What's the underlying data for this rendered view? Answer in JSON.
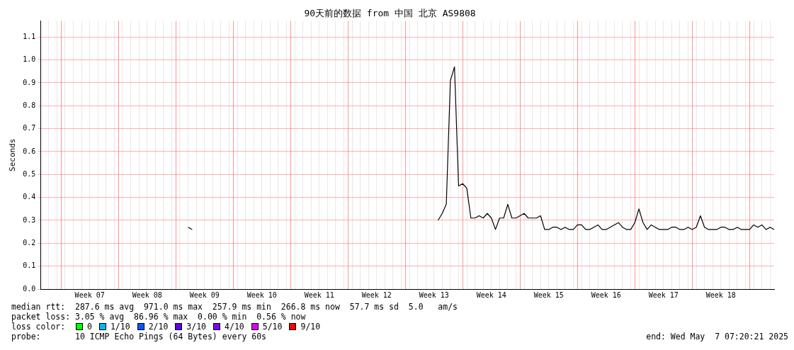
{
  "chart_data": {
    "type": "line",
    "title": "90天前的数据 from 中国 北京 AS9808",
    "ylabel": "Seconds",
    "categories": [
      null,
      null,
      null,
      null,
      null,
      null,
      null,
      null,
      null,
      null,
      null,
      null,
      "Week 07",
      null,
      null,
      null,
      null,
      null,
      null,
      null,
      null,
      null,
      null,
      null,
      null,
      null,
      "Week 08",
      null,
      null,
      null,
      null,
      null,
      null,
      null,
      null,
      null,
      null,
      null,
      null,
      null,
      "Week 09",
      null,
      null,
      null,
      null,
      null,
      null,
      null,
      null,
      null,
      null,
      null,
      null,
      null,
      "Week 10",
      null,
      null,
      null,
      null,
      null,
      null,
      null,
      null,
      null,
      null,
      null,
      null,
      null,
      "Week 11",
      null,
      null,
      null,
      null,
      null,
      null,
      null,
      null,
      null,
      null,
      null,
      null,
      null,
      "Week 12",
      null,
      null,
      null,
      null,
      null,
      null,
      null,
      null,
      null,
      null,
      null,
      null,
      null,
      "Week 13",
      null,
      null,
      null,
      null,
      null,
      null,
      null,
      null,
      null,
      null,
      null,
      null,
      null,
      "Week 14",
      null,
      null,
      null,
      null,
      null,
      null,
      null,
      null,
      null,
      null,
      null,
      null,
      null,
      "Week 15",
      null,
      null,
      null,
      null,
      null,
      null,
      null,
      null,
      null,
      null,
      null,
      null,
      null,
      "Week 16",
      null,
      null,
      null,
      null,
      null,
      null,
      null,
      null,
      null,
      null,
      null,
      null,
      null,
      "Week 17",
      null,
      null,
      null,
      null,
      null,
      null,
      null,
      null,
      null,
      null,
      null,
      null,
      null,
      "Week 18",
      null,
      null,
      null,
      null,
      null,
      null,
      null,
      null,
      null,
      null,
      null,
      null,
      null
    ],
    "series": [
      {
        "color": "#000000",
        "values": [
          null,
          null,
          null,
          null,
          null,
          null,
          null,
          null,
          null,
          null,
          null,
          null,
          null,
          null,
          null,
          null,
          null,
          null,
          null,
          null,
          null,
          null,
          null,
          null,
          null,
          null,
          null,
          null,
          null,
          null,
          null,
          null,
          null,
          null,
          null,
          null,
          0.27,
          0.26,
          null,
          null,
          null,
          null,
          null,
          null,
          null,
          null,
          null,
          null,
          null,
          null,
          null,
          null,
          null,
          null,
          null,
          null,
          null,
          null,
          null,
          null,
          null,
          null,
          null,
          null,
          null,
          null,
          null,
          null,
          null,
          null,
          null,
          null,
          null,
          null,
          null,
          null,
          null,
          null,
          null,
          null,
          null,
          null,
          null,
          null,
          null,
          null,
          null,
          null,
          null,
          null,
          null,
          null,
          null,
          null,
          null,
          null,
          null,
          0.3,
          0.33,
          0.37,
          0.91,
          0.97,
          0.45,
          0.46,
          0.44,
          0.31,
          0.31,
          0.32,
          0.31,
          0.33,
          0.31,
          0.26,
          0.31,
          0.31,
          0.37,
          0.31,
          0.31,
          0.32,
          0.33,
          0.31,
          0.31,
          0.31,
          0.32,
          0.26,
          0.26,
          0.27,
          0.27,
          0.26,
          0.27,
          0.26,
          0.26,
          0.28,
          0.28,
          0.26,
          0.26,
          0.27,
          0.28,
          0.26,
          0.26,
          0.27,
          0.28,
          0.29,
          0.27,
          0.26,
          0.26,
          0.29,
          0.35,
          0.29,
          0.26,
          0.28,
          0.27,
          0.26,
          0.26,
          0.26,
          0.27,
          0.27,
          0.26,
          0.26,
          0.27,
          0.26,
          0.27,
          0.32,
          0.27,
          0.26,
          0.26,
          0.26,
          0.27,
          0.27,
          0.26,
          0.26,
          0.27,
          0.26,
          0.26,
          0.26,
          0.28,
          0.27,
          0.28,
          0.26,
          0.27,
          0.26
        ]
      }
    ],
    "ylim": [
      0,
      1.17
    ],
    "yticks": [
      {
        "value": 0,
        "label": "0.0"
      },
      0.1,
      0.2,
      0.3,
      0.4,
      0.5,
      0.6,
      0.7,
      0.8,
      0.9,
      {
        "value": 1,
        "label": "1.0"
      },
      1.1
    ],
    "grid": true,
    "legend": false,
    "marker": "none",
    "line_style": "solid",
    "annotations": [
      "median rtt:  287.6 ms avg  971.0 ms max  257.9 ms min  266.8 ms now  57.7 ms sd  5.0   am/s",
      "packet loss: 3.05 % avg  86.96 % max  0.00 % min  0.56 % now",
      "loss color:",
      "0",
      "1/10",
      "2/10",
      "3/10",
      "4/10",
      "5/10",
      "9/10",
      "probe:       10 ICMP Echo Pings (64 Bytes) every 60s",
      "end: Wed May  7 07:20:21 2025"
    ]
  }
}
